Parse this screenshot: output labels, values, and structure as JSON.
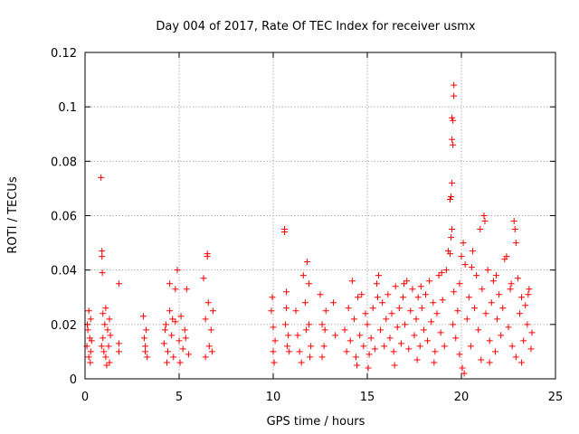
{
  "chart_data": {
    "type": "scatter",
    "title": "Day 004 of 2017, Rate Of TEC Index for receiver usmx",
    "xlabel": "GPS time / hours",
    "ylabel": "ROTI / TECUs",
    "xlim": [
      0,
      25
    ],
    "ylim": [
      0,
      0.12
    ],
    "xticks": [
      0,
      5,
      10,
      15,
      20,
      25
    ],
    "xtick_labels": [
      "0",
      "5",
      "10",
      "15",
      "20",
      "25"
    ],
    "yticks": [
      0,
      0.02,
      0.04,
      0.06,
      0.08,
      0.1,
      0.12
    ],
    "ytick_labels": [
      "0",
      "0.02",
      "0.04",
      "0.06",
      "0.08",
      "0.1",
      "0.12"
    ],
    "grid": true,
    "marker": "+",
    "series": [
      {
        "name": "ROTI",
        "color": "#ff0000",
        "points": [
          [
            0.1,
            0.012
          ],
          [
            0.15,
            0.018
          ],
          [
            0.2,
            0.025
          ],
          [
            0.2,
            0.008
          ],
          [
            0.25,
            0.015
          ],
          [
            0.3,
            0.022
          ],
          [
            0.3,
            0.01
          ],
          [
            0.35,
            0.014
          ],
          [
            0.12,
            0.02
          ],
          [
            0.28,
            0.006
          ],
          [
            0.85,
            0.074
          ],
          [
            0.9,
            0.047
          ],
          [
            0.9,
            0.045
          ],
          [
            0.92,
            0.039
          ],
          [
            0.95,
            0.015
          ],
          [
            1.0,
            0.01
          ],
          [
            1.05,
            0.02
          ],
          [
            1.1,
            0.026
          ],
          [
            1.1,
            0.008
          ],
          [
            1.2,
            0.018
          ],
          [
            1.25,
            0.012
          ],
          [
            1.3,
            0.022
          ],
          [
            1.3,
            0.006
          ],
          [
            1.35,
            0.016
          ],
          [
            0.88,
            0.012
          ],
          [
            0.95,
            0.024
          ],
          [
            1.15,
            0.005
          ],
          [
            1.8,
            0.035
          ],
          [
            1.8,
            0.013
          ],
          [
            1.8,
            0.01
          ],
          [
            3.1,
            0.023
          ],
          [
            3.15,
            0.015
          ],
          [
            3.2,
            0.01
          ],
          [
            3.25,
            0.018
          ],
          [
            3.3,
            0.008
          ],
          [
            3.2,
            0.012
          ],
          [
            4.2,
            0.013
          ],
          [
            4.3,
            0.02
          ],
          [
            4.4,
            0.01
          ],
          [
            4.5,
            0.035
          ],
          [
            4.5,
            0.025
          ],
          [
            4.6,
            0.016
          ],
          [
            4.7,
            0.008
          ],
          [
            4.8,
            0.033
          ],
          [
            4.8,
            0.021
          ],
          [
            4.9,
            0.04
          ],
          [
            5.0,
            0.014
          ],
          [
            5.1,
            0.023
          ],
          [
            5.2,
            0.011
          ],
          [
            5.3,
            0.018
          ],
          [
            5.4,
            0.033
          ],
          [
            5.5,
            0.009
          ],
          [
            4.35,
            0.006
          ],
          [
            4.65,
            0.022
          ],
          [
            5.05,
            0.006
          ],
          [
            5.35,
            0.015
          ],
          [
            4.25,
            0.018
          ],
          [
            6.3,
            0.037
          ],
          [
            6.4,
            0.022
          ],
          [
            6.5,
            0.046
          ],
          [
            6.5,
            0.045
          ],
          [
            6.55,
            0.028
          ],
          [
            6.6,
            0.012
          ],
          [
            6.7,
            0.018
          ],
          [
            6.8,
            0.025
          ],
          [
            6.4,
            0.008
          ],
          [
            6.75,
            0.01
          ],
          [
            9.9,
            0.025
          ],
          [
            10.0,
            0.019
          ],
          [
            10.0,
            0.01
          ],
          [
            10.05,
            0.006
          ],
          [
            10.1,
            0.014
          ],
          [
            9.95,
            0.03
          ],
          [
            10.6,
            0.055
          ],
          [
            10.6,
            0.054
          ],
          [
            10.7,
            0.032
          ],
          [
            10.7,
            0.026
          ],
          [
            10.8,
            0.016
          ],
          [
            10.85,
            0.01
          ],
          [
            10.65,
            0.02
          ],
          [
            10.75,
            0.012
          ],
          [
            11.2,
            0.025
          ],
          [
            11.3,
            0.016
          ],
          [
            11.4,
            0.01
          ],
          [
            11.6,
            0.038
          ],
          [
            11.7,
            0.028
          ],
          [
            11.8,
            0.043
          ],
          [
            11.9,
            0.035
          ],
          [
            11.9,
            0.02
          ],
          [
            12.0,
            0.012
          ],
          [
            11.5,
            0.006
          ],
          [
            11.75,
            0.018
          ],
          [
            11.95,
            0.008
          ],
          [
            12.5,
            0.031
          ],
          [
            12.6,
            0.02
          ],
          [
            12.7,
            0.012
          ],
          [
            12.8,
            0.025
          ],
          [
            12.6,
            0.008
          ],
          [
            12.75,
            0.018
          ],
          [
            13.2,
            0.028
          ],
          [
            13.3,
            0.016
          ],
          [
            13.8,
            0.018
          ],
          [
            13.9,
            0.01
          ],
          [
            14.0,
            0.026
          ],
          [
            14.1,
            0.014
          ],
          [
            14.2,
            0.036
          ],
          [
            14.3,
            0.022
          ],
          [
            14.4,
            0.008
          ],
          [
            14.5,
            0.03
          ],
          [
            14.6,
            0.016
          ],
          [
            14.7,
            0.031
          ],
          [
            14.8,
            0.012
          ],
          [
            14.9,
            0.024
          ],
          [
            15.0,
            0.02
          ],
          [
            15.1,
            0.009
          ],
          [
            15.2,
            0.015
          ],
          [
            15.3,
            0.026
          ],
          [
            15.4,
            0.011
          ],
          [
            15.5,
            0.035
          ],
          [
            15.6,
            0.038
          ],
          [
            15.7,
            0.018
          ],
          [
            15.8,
            0.028
          ],
          [
            15.9,
            0.012
          ],
          [
            16.0,
            0.022
          ],
          [
            16.1,
            0.031
          ],
          [
            16.2,
            0.015
          ],
          [
            16.3,
            0.024
          ],
          [
            16.4,
            0.01
          ],
          [
            16.5,
            0.034
          ],
          [
            16.6,
            0.019
          ],
          [
            16.7,
            0.026
          ],
          [
            16.8,
            0.013
          ],
          [
            16.9,
            0.03
          ],
          [
            17.0,
            0.02
          ],
          [
            17.1,
            0.036
          ],
          [
            17.2,
            0.011
          ],
          [
            17.3,
            0.025
          ],
          [
            17.4,
            0.033
          ],
          [
            17.5,
            0.016
          ],
          [
            17.6,
            0.022
          ],
          [
            17.7,
            0.03
          ],
          [
            17.8,
            0.012
          ],
          [
            17.9,
            0.026
          ],
          [
            18.0,
            0.018
          ],
          [
            18.1,
            0.031
          ],
          [
            18.2,
            0.014
          ],
          [
            18.3,
            0.036
          ],
          [
            18.4,
            0.021
          ],
          [
            18.5,
            0.028
          ],
          [
            18.6,
            0.01
          ],
          [
            18.7,
            0.024
          ],
          [
            18.8,
            0.038
          ],
          [
            18.9,
            0.017
          ],
          [
            19.0,
            0.029
          ],
          [
            19.1,
            0.012
          ],
          [
            19.2,
            0.04
          ],
          [
            19.3,
            0.047
          ],
          [
            19.4,
            0.046
          ],
          [
            19.45,
            0.052
          ],
          [
            19.5,
            0.055
          ],
          [
            19.4,
            0.066
          ],
          [
            19.45,
            0.067
          ],
          [
            19.5,
            0.072
          ],
          [
            19.5,
            0.088
          ],
          [
            19.55,
            0.086
          ],
          [
            19.5,
            0.096
          ],
          [
            19.55,
            0.095
          ],
          [
            19.6,
            0.104
          ],
          [
            19.6,
            0.108
          ],
          [
            19.55,
            0.02
          ],
          [
            19.6,
            0.032
          ],
          [
            19.7,
            0.015
          ],
          [
            19.8,
            0.025
          ],
          [
            19.9,
            0.035
          ],
          [
            20.0,
            0.045
          ],
          [
            20.1,
            0.05
          ],
          [
            20.2,
            0.042
          ],
          [
            20.3,
            0.022
          ],
          [
            20.4,
            0.03
          ],
          [
            20.5,
            0.012
          ],
          [
            20.6,
            0.047
          ],
          [
            20.7,
            0.026
          ],
          [
            20.8,
            0.038
          ],
          [
            20.9,
            0.018
          ],
          [
            21.0,
            0.055
          ],
          [
            21.1,
            0.033
          ],
          [
            21.2,
            0.06
          ],
          [
            21.25,
            0.058
          ],
          [
            21.3,
            0.024
          ],
          [
            21.4,
            0.04
          ],
          [
            21.5,
            0.014
          ],
          [
            21.6,
            0.028
          ],
          [
            21.7,
            0.036
          ],
          [
            21.8,
            0.01
          ],
          [
            21.9,
            0.022
          ],
          [
            22.0,
            0.031
          ],
          [
            22.1,
            0.016
          ],
          [
            22.2,
            0.026
          ],
          [
            22.3,
            0.044
          ],
          [
            22.4,
            0.045
          ],
          [
            22.5,
            0.019
          ],
          [
            22.6,
            0.033
          ],
          [
            22.7,
            0.012
          ],
          [
            22.8,
            0.058
          ],
          [
            22.85,
            0.055
          ],
          [
            22.9,
            0.05
          ],
          [
            23.0,
            0.037
          ],
          [
            23.1,
            0.024
          ],
          [
            23.2,
            0.03
          ],
          [
            23.3,
            0.014
          ],
          [
            23.4,
            0.027
          ],
          [
            23.5,
            0.02
          ],
          [
            23.6,
            0.033
          ],
          [
            23.7,
            0.011
          ],
          [
            23.75,
            0.017
          ],
          [
            20.05,
            0.004
          ],
          [
            20.15,
            0.002
          ],
          [
            21.5,
            0.006
          ],
          [
            22.9,
            0.008
          ],
          [
            18.55,
            0.006
          ],
          [
            16.45,
            0.005
          ],
          [
            15.05,
            0.004
          ],
          [
            14.45,
            0.005
          ],
          [
            19.9,
            0.009
          ],
          [
            23.2,
            0.006
          ],
          [
            17.65,
            0.007
          ],
          [
            21.05,
            0.007
          ],
          [
            15.55,
            0.03
          ],
          [
            16.95,
            0.035
          ],
          [
            17.85,
            0.034
          ],
          [
            18.95,
            0.039
          ],
          [
            20.55,
            0.041
          ],
          [
            21.85,
            0.038
          ],
          [
            22.65,
            0.035
          ],
          [
            23.55,
            0.031
          ]
        ]
      }
    ]
  }
}
